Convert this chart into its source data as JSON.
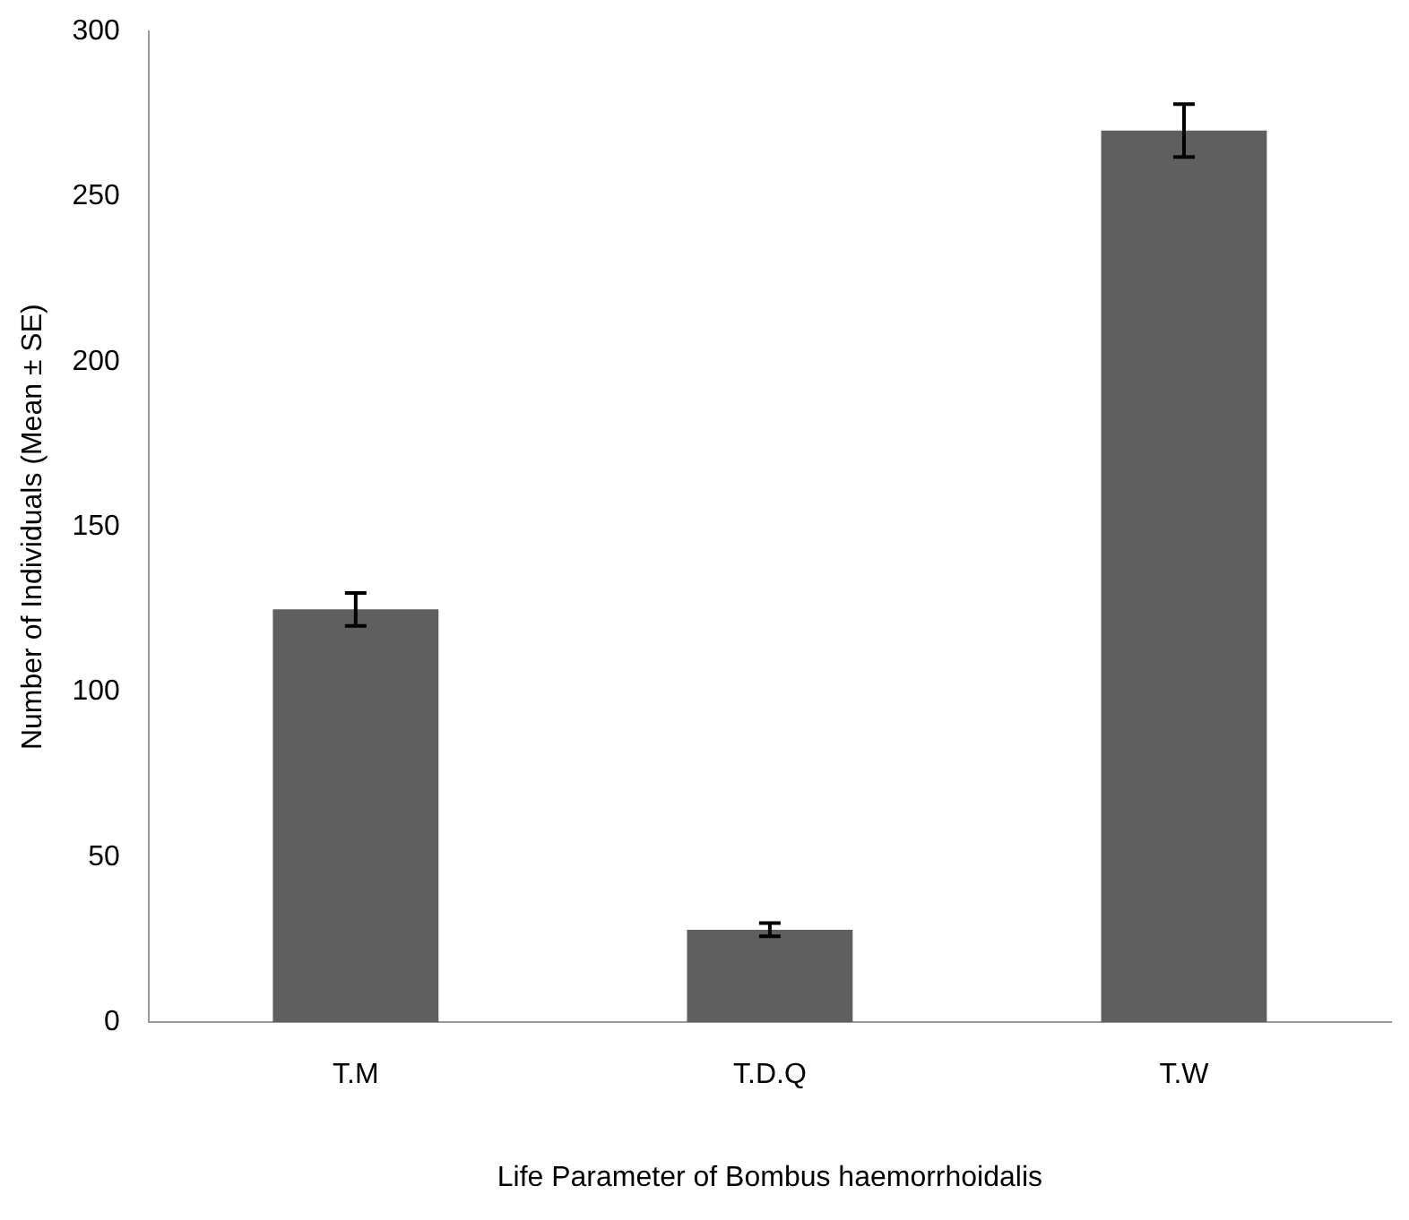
{
  "chart_data": {
    "type": "bar",
    "xlabel": "Life Parameter of Bombus haemorrhoidalis",
    "ylabel": "Number of Individuals (Mean ± SE)",
    "categories": [
      "T.M",
      "T.D.Q",
      "T.W"
    ],
    "values": [
      125,
      28,
      270
    ],
    "errors": [
      5,
      2,
      8
    ],
    "color": "#5f5f5f",
    "ylim": [
      0,
      300
    ],
    "yticks": [
      0,
      50,
      100,
      150,
      200,
      250,
      300
    ],
    "grid": false,
    "legend": false
  }
}
